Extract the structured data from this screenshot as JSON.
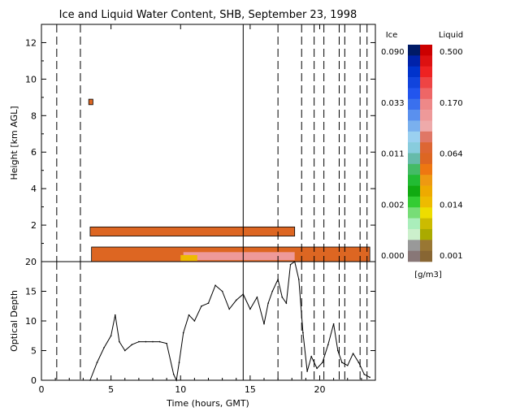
{
  "chart_data": [
    {
      "type": "heatmap",
      "title": "Ice and Liquid Water Content, SHB, September 23, 1998",
      "ylabel": "Height [km AGL]",
      "xlim": [
        0,
        24
      ],
      "ylim": [
        0,
        13
      ],
      "yticks": [
        "0",
        "2",
        "4",
        "6",
        "8",
        "10",
        "12"
      ],
      "grid": false,
      "cloud_layers": [
        {
          "name": "low",
          "x_start": 3.6,
          "x_end": 23.6,
          "y_bottom": 0.0,
          "y_top": 0.8
        },
        {
          "name": "mid",
          "x_start": 3.5,
          "x_end": 18.2,
          "y_bottom": 1.4,
          "y_top": 1.9
        },
        {
          "name": "high",
          "x_start": 3.4,
          "x_end": 3.7,
          "y_bottom": 8.6,
          "y_top": 8.9
        }
      ],
      "colorbar": {
        "ice_label": "Ice",
        "liquid_label": "Liquid",
        "unit": "[g/m3]",
        "ice_ticks": [
          "0.090",
          "0.033",
          "0.011",
          "0.002",
          "0.000"
        ],
        "liquid_ticks": [
          "0.500",
          "0.170",
          "0.064",
          "0.014",
          "0.001"
        ],
        "ice_colors": [
          "#001a66",
          "#0022aa",
          "#0033cc",
          "#1144dd",
          "#2255ee",
          "#3a70ee",
          "#5a90ee",
          "#7ab0ee",
          "#9ad0f0",
          "#88ccdd",
          "#66bbaa",
          "#44bb66",
          "#22bb33",
          "#11aa11",
          "#33cc33",
          "#77dd77",
          "#aaeebb",
          "#ccf0cc",
          "#999999",
          "#887777"
        ],
        "liquid_colors": [
          "#cc0000",
          "#dd1111",
          "#ee2222",
          "#ee4444",
          "#ee6666",
          "#ee8888",
          "#ee9999",
          "#eeaaaa",
          "#e07766",
          "#dd6633",
          "#dd6622",
          "#ee7711",
          "#ee9911",
          "#eeaa00",
          "#eebb00",
          "#eedd00",
          "#ccbb00",
          "#aaaa00",
          "#997733",
          "#886633"
        ]
      }
    },
    {
      "type": "line",
      "xlabel": "Time (hours, GMT)",
      "ylabel": "Optical Depth",
      "xlim": [
        0,
        24
      ],
      "ylim": [
        0,
        20
      ],
      "xticks": [
        "0",
        "5",
        "10",
        "15",
        "20"
      ],
      "yticks": [
        "0",
        "5",
        "10",
        "15",
        "20"
      ],
      "grid": false,
      "x": [
        3.5,
        4.0,
        4.5,
        5.0,
        5.3,
        5.6,
        6.0,
        6.5,
        7.0,
        7.5,
        8.0,
        8.5,
        9.0,
        9.5,
        9.7,
        9.9,
        10.2,
        10.6,
        11.0,
        11.5,
        12.0,
        12.5,
        13.0,
        13.5,
        14.0,
        14.5,
        15.0,
        15.5,
        16.0,
        16.3,
        16.6,
        17.0,
        17.3,
        17.6,
        17.9,
        18.2,
        18.5,
        18.8,
        19.1,
        19.4,
        19.8,
        20.2,
        20.6,
        21.0,
        21.3,
        21.6,
        22.0,
        22.4,
        22.8,
        23.2,
        23.6
      ],
      "y": [
        0.0,
        3.0,
        5.5,
        7.5,
        11.0,
        6.5,
        5.0,
        6.0,
        6.5,
        6.5,
        6.5,
        6.5,
        6.2,
        1.0,
        0.0,
        3.0,
        8.0,
        11.0,
        10.0,
        12.5,
        13.0,
        16.0,
        15.0,
        12.0,
        13.5,
        14.5,
        12.0,
        14.0,
        9.5,
        13.0,
        15.0,
        17.0,
        14.0,
        13.0,
        19.5,
        20.0,
        17.0,
        8.0,
        1.5,
        4.0,
        2.0,
        3.0,
        6.0,
        9.5,
        5.0,
        3.0,
        2.5,
        4.5,
        3.0,
        1.0,
        0.5
      ],
      "vlines_dashed": [
        1.1,
        2.8,
        17.0,
        18.7,
        19.6,
        20.3,
        21.4,
        21.8,
        22.9,
        23.4
      ],
      "vlines_solid": [
        14.5
      ]
    }
  ]
}
